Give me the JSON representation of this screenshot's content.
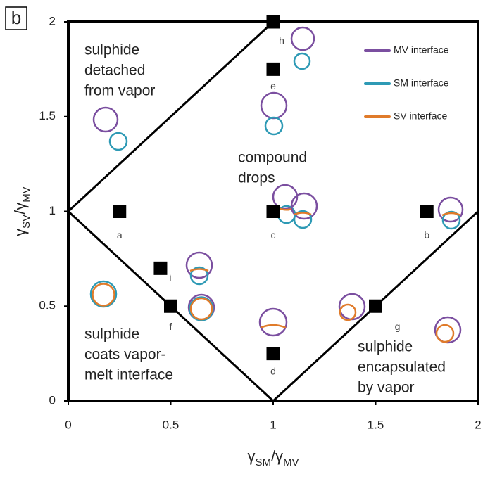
{
  "chart_data": {
    "type": "scatter",
    "panel_label": "b",
    "x_label": [
      "γ",
      "SM",
      "/γ",
      "MV"
    ],
    "y_label": [
      "γ",
      "SV",
      "/γ",
      "MV"
    ],
    "xlim": [
      0,
      2
    ],
    "ylim": [
      0,
      2
    ],
    "xticks": [
      0,
      0.5,
      1,
      1.5,
      2
    ],
    "yticks": [
      0,
      0.5,
      1,
      1.5,
      2
    ],
    "points": {
      "labels": [
        "a",
        "b",
        "c",
        "d",
        "e",
        "f",
        "g",
        "h",
        "i"
      ],
      "x": [
        0.25,
        1.75,
        1,
        1,
        1,
        0.5,
        1.5,
        1,
        0.45
      ],
      "y": [
        1,
        1,
        1,
        0.25,
        1.75,
        0.5,
        0.5,
        2,
        0.7
      ],
      "color": "#000000"
    },
    "boundaries": [
      {
        "x": [
          0,
          1
        ],
        "y": [
          1,
          2
        ]
      },
      {
        "x": [
          0,
          1
        ],
        "y": [
          1,
          0
        ]
      },
      {
        "x": [
          1,
          2
        ],
        "y": [
          0,
          1
        ]
      }
    ],
    "legend": [
      {
        "name": "MV interface",
        "color": "#7b4fa0"
      },
      {
        "name": "SM interface",
        "color": "#2e9ab5"
      },
      {
        "name": "SV interface",
        "color": "#e07b2a"
      }
    ],
    "annotations": [
      [
        "sulphide",
        "detached",
        "from vapor"
      ],
      [
        "compound",
        "drops"
      ],
      [
        "sulphide",
        "coats vapor-",
        "melt interface"
      ],
      [
        "sulphide",
        "encapsulated",
        "by vapor"
      ]
    ]
  }
}
